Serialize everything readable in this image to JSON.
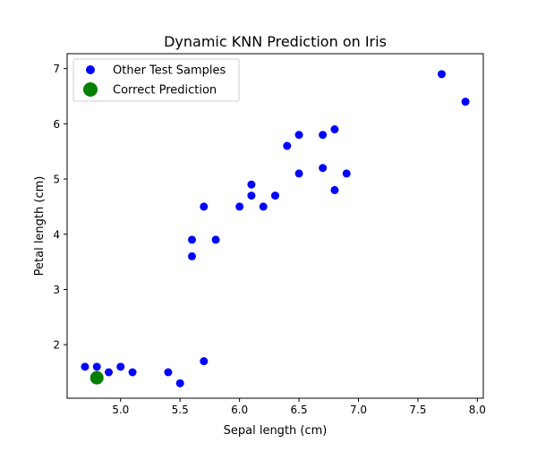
{
  "chart_data": {
    "type": "scatter",
    "title": "Dynamic KNN Prediction on Iris",
    "xlabel": "Sepal length (cm)",
    "ylabel": "Petal length (cm)",
    "xlim": [
      4.55,
      8.05
    ],
    "ylim": [
      1.03,
      7.27
    ],
    "xticks": [
      5.0,
      5.5,
      6.0,
      6.5,
      7.0,
      7.5,
      8.0
    ],
    "xtick_labels": [
      "5.0",
      "5.5",
      "6.0",
      "6.5",
      "7.0",
      "7.5",
      "8.0"
    ],
    "yticks": [
      2,
      3,
      4,
      5,
      6,
      7
    ],
    "ytick_labels": [
      "2",
      "3",
      "4",
      "5",
      "6",
      "7"
    ],
    "grid": false,
    "legend_position": "top-left",
    "series": [
      {
        "name": "Other Test Samples",
        "color": "#0000ff",
        "points": [
          [
            4.7,
            1.6
          ],
          [
            4.8,
            1.6
          ],
          [
            4.9,
            1.5
          ],
          [
            5.0,
            1.6
          ],
          [
            5.1,
            1.5
          ],
          [
            5.4,
            1.5
          ],
          [
            5.5,
            1.3
          ],
          [
            5.7,
            1.7
          ],
          [
            5.6,
            3.6
          ],
          [
            5.6,
            3.9
          ],
          [
            5.8,
            3.9
          ],
          [
            5.7,
            4.5
          ],
          [
            6.0,
            4.5
          ],
          [
            6.2,
            4.5
          ],
          [
            6.1,
            4.7
          ],
          [
            6.3,
            4.7
          ],
          [
            6.1,
            4.9
          ],
          [
            6.5,
            5.1
          ],
          [
            6.9,
            5.1
          ],
          [
            6.7,
            5.2
          ],
          [
            6.8,
            4.8
          ],
          [
            6.4,
            5.6
          ],
          [
            6.5,
            5.8
          ],
          [
            6.7,
            5.8
          ],
          [
            6.8,
            5.9
          ],
          [
            7.7,
            6.9
          ],
          [
            7.9,
            6.4
          ]
        ]
      },
      {
        "name": "Correct Prediction",
        "color": "#008000",
        "points": [
          [
            4.8,
            1.4
          ]
        ]
      }
    ]
  }
}
